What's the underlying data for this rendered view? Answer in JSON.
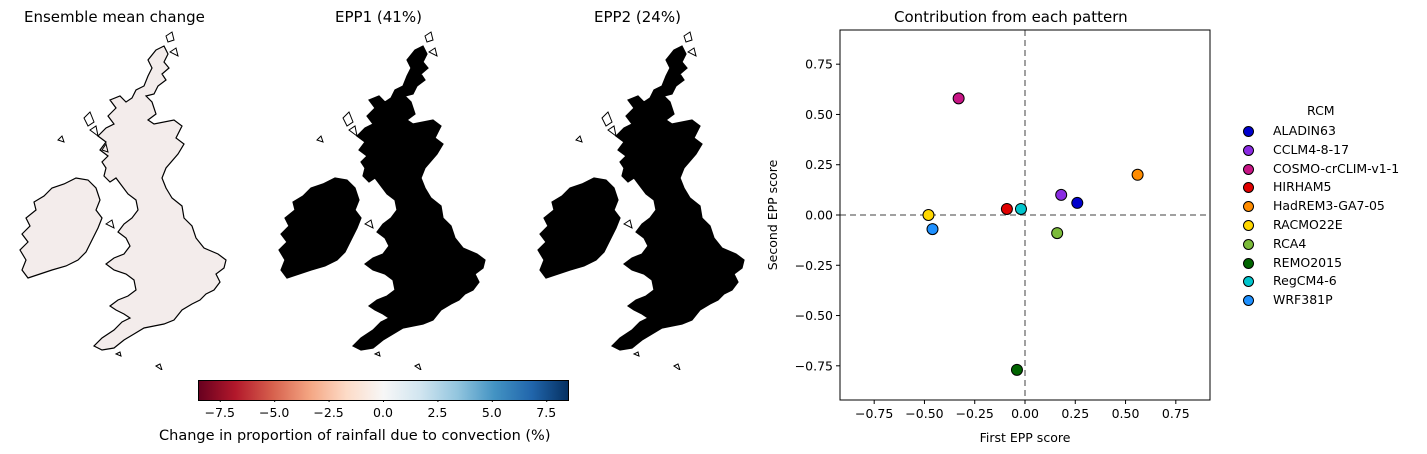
{
  "maps": {
    "panels": [
      {
        "title": "Ensemble mean change",
        "field": "mean"
      },
      {
        "title": "EPP1 (41%)",
        "field": "epp1"
      },
      {
        "title": "EPP2 (24%)",
        "field": "epp2"
      }
    ],
    "colorbar": {
      "label": "Change in proportion of rainfall due to convection (%)",
      "range": [
        -8.5,
        8.5
      ],
      "ticks": [
        "−7.5",
        "−5.0",
        "−2.5",
        "0.0",
        "2.5",
        "5.0",
        "7.5"
      ],
      "tick_values": [
        -7.5,
        -5.0,
        -2.5,
        0.0,
        2.5,
        5.0,
        7.5
      ],
      "colormap": "RdBu"
    }
  },
  "chart_data": {
    "type": "scatter",
    "title": "Contribution from each pattern",
    "xlabel": "First EPP score",
    "ylabel": "Second EPP score",
    "xlim": [
      -0.92,
      0.92
    ],
    "ylim": [
      -0.92,
      0.92
    ],
    "xticks": [
      -0.75,
      -0.5,
      -0.25,
      0.0,
      0.25,
      0.5,
      0.75
    ],
    "yticks": [
      -0.75,
      -0.5,
      -0.25,
      0.0,
      0.25,
      0.5,
      0.75
    ],
    "xtick_labels": [
      "−0.75",
      "−0.50",
      "−0.25",
      "0.00",
      "0.25",
      "0.50",
      "0.75"
    ],
    "ytick_labels": [
      "−0.75",
      "−0.50",
      "−0.25",
      "0.00",
      "0.25",
      "0.50",
      "0.75"
    ],
    "reference_lines": {
      "x": 0,
      "y": 0,
      "style": "dashed",
      "color": "#808080"
    },
    "grid": false,
    "legend": {
      "title": "RCM",
      "placement": "right-outside"
    },
    "series": [
      {
        "name": "ALADIN63",
        "x": 0.26,
        "y": 0.06,
        "color": "#0000cd"
      },
      {
        "name": "CCLM4-8-17",
        "x": 0.18,
        "y": 0.1,
        "color": "#8a2be2"
      },
      {
        "name": "COSMO-crCLIM-v1-1",
        "x": -0.33,
        "y": 0.58,
        "color": "#c71585"
      },
      {
        "name": "HIRHAM5",
        "x": -0.09,
        "y": 0.03,
        "color": "#e00000"
      },
      {
        "name": "HadREM3-GA7-05",
        "x": 0.56,
        "y": 0.2,
        "color": "#ff8c00"
      },
      {
        "name": "RACMO22E",
        "x": -0.48,
        "y": 0.0,
        "color": "#ffd700"
      },
      {
        "name": "RCA4",
        "x": 0.16,
        "y": -0.09,
        "color": "#7cbb3a"
      },
      {
        "name": "REMO2015",
        "x": -0.04,
        "y": -0.77,
        "color": "#006400"
      },
      {
        "name": "RegCM4-6",
        "x": -0.02,
        "y": 0.03,
        "color": "#00c5cd"
      },
      {
        "name": "WRF381P",
        "x": -0.46,
        "y": -0.07,
        "color": "#1e90ff"
      }
    ]
  }
}
